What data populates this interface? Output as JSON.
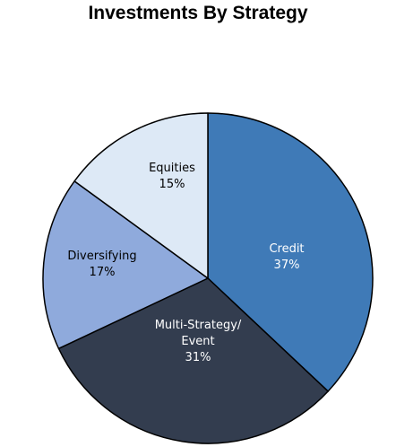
{
  "chart_data": {
    "type": "pie",
    "title": "Investments By Strategy",
    "slices": [
      {
        "label": "Credit",
        "value": 37,
        "value_label": "37%",
        "color": "#3f7ab7",
        "text_color": "#ffffff"
      },
      {
        "label": "Multi-Strategy/ Event",
        "value": 31,
        "value_label": "31%",
        "color": "#333d4f",
        "text_color": "#ffffff"
      },
      {
        "label": "Diversifying",
        "value": 17,
        "value_label": "17%",
        "color": "#8faadc",
        "text_color": "#000000"
      },
      {
        "label": "Equities",
        "value": 15,
        "value_label": "15%",
        "color": "#dde9f6",
        "text_color": "#000000"
      }
    ],
    "start_angle": "12 o'clock",
    "direction": "clockwise",
    "legend": "none",
    "border_color": "#000000"
  }
}
